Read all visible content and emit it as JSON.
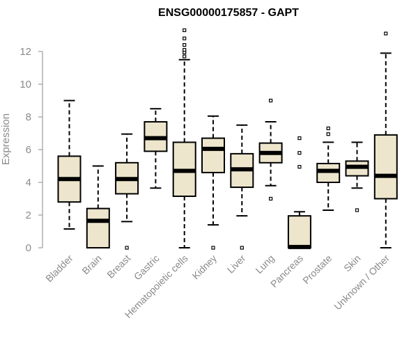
{
  "chart_data": {
    "type": "boxplot",
    "title": "ENSG00000175857 - GAPT",
    "xlabel": "",
    "ylabel": "Expression",
    "ylim": [
      0,
      13.8
    ],
    "yticks": [
      0,
      2,
      4,
      6,
      8,
      10,
      12
    ],
    "grid": false,
    "box_fill": "#ede6cd",
    "categories": [
      "Bladder",
      "Brain",
      "Breast",
      "Gastric",
      "Hematopoietic cells",
      "Kidney",
      "Liver",
      "Lung",
      "Pancreas",
      "Prostate",
      "Skin",
      "Unknown / Other"
    ],
    "boxes": [
      {
        "whisker_low": 1.15,
        "q1": 2.8,
        "median": 4.2,
        "q3": 5.6,
        "whisker_high": 9.0,
        "outliers": []
      },
      {
        "whisker_low": 0.0,
        "q1": 0.0,
        "median": 1.65,
        "q3": 2.4,
        "whisker_high": 5.0,
        "outliers": []
      },
      {
        "whisker_low": 1.6,
        "q1": 3.3,
        "median": 4.2,
        "q3": 5.2,
        "whisker_high": 6.95,
        "outliers": [
          0.0
        ]
      },
      {
        "whisker_low": 3.65,
        "q1": 5.9,
        "median": 6.7,
        "q3": 7.7,
        "whisker_high": 8.5,
        "outliers": []
      },
      {
        "whisker_low": 0.0,
        "q1": 3.15,
        "median": 4.7,
        "q3": 6.45,
        "whisker_high": 11.5,
        "outliers": [
          11.7,
          11.95,
          12.1,
          12.4,
          12.8,
          13.3
        ]
      },
      {
        "whisker_low": 1.4,
        "q1": 4.6,
        "median": 6.05,
        "q3": 6.7,
        "whisker_high": 8.05,
        "outliers": [
          0.0
        ]
      },
      {
        "whisker_low": 1.95,
        "q1": 3.7,
        "median": 4.8,
        "q3": 5.75,
        "whisker_high": 7.5,
        "outliers": [
          0.0
        ]
      },
      {
        "whisker_low": 3.8,
        "q1": 5.2,
        "median": 5.8,
        "q3": 6.4,
        "whisker_high": 7.7,
        "outliers": [
          3.0,
          9.0
        ]
      },
      {
        "whisker_low": 0.0,
        "q1": 0.0,
        "median": 0.05,
        "q3": 1.95,
        "whisker_high": 2.2,
        "outliers": [
          4.95,
          5.8,
          6.7
        ]
      },
      {
        "whisker_low": 2.3,
        "q1": 4.0,
        "median": 4.7,
        "q3": 5.15,
        "whisker_high": 6.45,
        "outliers": [
          6.95,
          7.3
        ]
      },
      {
        "whisker_low": 3.65,
        "q1": 4.4,
        "median": 4.95,
        "q3": 5.3,
        "whisker_high": 6.45,
        "outliers": [
          2.3
        ]
      },
      {
        "whisker_low": 0.0,
        "q1": 3.0,
        "median": 4.4,
        "q3": 6.9,
        "whisker_high": 11.9,
        "outliers": [
          13.1
        ]
      }
    ]
  }
}
